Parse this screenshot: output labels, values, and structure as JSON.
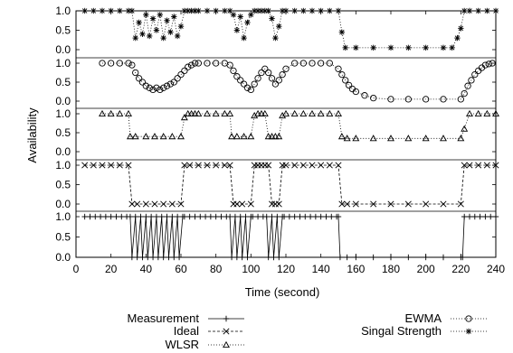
{
  "chart_data": {
    "type": "line",
    "xlabel": "Time (second)",
    "ylabel": "Availability",
    "xlim": [
      0,
      240
    ],
    "x_ticks": [
      0,
      20,
      40,
      60,
      80,
      100,
      120,
      140,
      160,
      180,
      200,
      220,
      240
    ],
    "y_ticks": [
      "0.0",
      "0.5",
      "1.0"
    ],
    "grid": false,
    "legend_position": "bottom",
    "panels": [
      {
        "name": "Singal Strength",
        "marker": "asterisk",
        "line": "dotted",
        "x": [
          5,
          10,
          15,
          20,
          25,
          30,
          32,
          34,
          36,
          38,
          40,
          42,
          44,
          46,
          48,
          50,
          52,
          54,
          56,
          58,
          60,
          62,
          64,
          66,
          68,
          70,
          75,
          80,
          85,
          88,
          90,
          92,
          94,
          96,
          98,
          100,
          102,
          104,
          106,
          108,
          110,
          112,
          114,
          116,
          118,
          120,
          125,
          130,
          135,
          140,
          145,
          150,
          152,
          154,
          160,
          170,
          180,
          190,
          200,
          210,
          215,
          218,
          220,
          222,
          225,
          230,
          235,
          240
        ],
        "y": [
          1.0,
          1.0,
          1.0,
          1.0,
          1.0,
          1.0,
          1.0,
          0.3,
          0.7,
          0.4,
          0.9,
          0.35,
          0.8,
          0.5,
          0.9,
          0.3,
          0.75,
          0.45,
          0.85,
          0.35,
          0.6,
          1.0,
          1.0,
          1.0,
          1.0,
          1.0,
          1.0,
          1.0,
          1.0,
          1.0,
          0.9,
          0.5,
          0.85,
          0.3,
          0.7,
          0.9,
          1.0,
          1.0,
          1.0,
          1.0,
          1.0,
          0.8,
          0.3,
          0.6,
          1.0,
          1.0,
          1.0,
          1.0,
          1.0,
          1.0,
          1.0,
          1.0,
          0.45,
          0.05,
          0.05,
          0.05,
          0.05,
          0.05,
          0.05,
          0.05,
          0.05,
          0.3,
          0.55,
          1.0,
          1.0,
          1.0,
          1.0,
          1.0
        ]
      },
      {
        "name": "EWMA",
        "marker": "circle",
        "line": "dotted",
        "x": [
          15,
          20,
          25,
          30,
          32,
          34,
          36,
          38,
          40,
          42,
          44,
          46,
          48,
          50,
          52,
          54,
          56,
          58,
          60,
          62,
          64,
          66,
          68,
          70,
          75,
          80,
          85,
          88,
          90,
          92,
          94,
          96,
          98,
          100,
          102,
          104,
          106,
          108,
          110,
          112,
          114,
          116,
          118,
          120,
          125,
          130,
          135,
          140,
          145,
          150,
          152,
          154,
          156,
          158,
          160,
          165,
          170,
          180,
          190,
          200,
          210,
          220,
          222,
          224,
          226,
          228,
          230,
          232,
          234,
          236,
          238
        ],
        "y": [
          1.0,
          1.0,
          1.0,
          1.0,
          0.95,
          0.75,
          0.6,
          0.5,
          0.4,
          0.35,
          0.3,
          0.35,
          0.3,
          0.35,
          0.4,
          0.45,
          0.5,
          0.6,
          0.7,
          0.8,
          0.9,
          0.95,
          1.0,
          1.0,
          1.0,
          1.0,
          1.0,
          0.95,
          0.8,
          0.65,
          0.55,
          0.45,
          0.35,
          0.3,
          0.45,
          0.6,
          0.75,
          0.85,
          0.75,
          0.6,
          0.45,
          0.55,
          0.7,
          0.85,
          1.0,
          1.0,
          1.0,
          1.0,
          1.0,
          0.85,
          0.7,
          0.55,
          0.42,
          0.32,
          0.25,
          0.15,
          0.08,
          0.05,
          0.05,
          0.05,
          0.05,
          0.05,
          0.2,
          0.4,
          0.55,
          0.7,
          0.8,
          0.88,
          0.95,
          0.98,
          1.0
        ]
      },
      {
        "name": "WLSR",
        "marker": "triangle",
        "line": "dotted",
        "x": [
          15,
          20,
          25,
          30,
          31,
          34,
          40,
          45,
          50,
          55,
          60,
          62,
          64,
          66,
          68,
          70,
          75,
          80,
          85,
          88,
          89,
          92,
          96,
          100,
          102,
          104,
          106,
          108,
          110,
          112,
          114,
          116,
          118,
          120,
          125,
          130,
          135,
          140,
          145,
          150,
          152,
          155,
          160,
          170,
          180,
          190,
          200,
          210,
          220,
          222,
          225,
          230,
          235,
          240
        ],
        "y": [
          1.0,
          1.0,
          1.0,
          1.0,
          0.4,
          0.4,
          0.4,
          0.4,
          0.4,
          0.4,
          0.4,
          0.9,
          1.0,
          1.0,
          1.0,
          1.0,
          1.0,
          1.0,
          1.0,
          1.0,
          0.4,
          0.4,
          0.4,
          0.4,
          0.95,
          1.0,
          1.0,
          1.0,
          0.4,
          0.4,
          0.4,
          0.4,
          0.95,
          1.0,
          1.0,
          1.0,
          1.0,
          1.0,
          1.0,
          1.0,
          0.4,
          0.35,
          0.35,
          0.35,
          0.35,
          0.35,
          0.35,
          0.35,
          0.35,
          0.6,
          1.0,
          1.0,
          1.0,
          1.0
        ]
      },
      {
        "name": "Ideal",
        "marker": "x",
        "line": "dashed",
        "x": [
          5,
          10,
          15,
          20,
          25,
          30,
          32,
          35,
          40,
          45,
          50,
          55,
          60,
          62,
          65,
          70,
          75,
          80,
          85,
          88,
          90,
          92,
          95,
          100,
          102,
          104,
          106,
          108,
          110,
          112,
          114,
          116,
          118,
          120,
          125,
          130,
          135,
          140,
          145,
          150,
          152,
          155,
          160,
          170,
          180,
          190,
          200,
          210,
          220,
          222,
          225,
          230,
          235,
          240
        ],
        "y": [
          1,
          1,
          1,
          1,
          1,
          1,
          0,
          0,
          0,
          0,
          0,
          0,
          0,
          1,
          1,
          1,
          1,
          1,
          1,
          1,
          0,
          0,
          0,
          0,
          1,
          1,
          1,
          1,
          1,
          0,
          0,
          0,
          1,
          1,
          1,
          1,
          1,
          1,
          1,
          1,
          0,
          0,
          0,
          0,
          0,
          0,
          0,
          0,
          0,
          1,
          1,
          1,
          1,
          1
        ]
      },
      {
        "name": "Measurement",
        "marker": "plus",
        "line": "solid",
        "x": [
          5,
          8,
          11,
          14,
          17,
          20,
          23,
          26,
          29,
          31,
          32,
          34,
          35,
          37,
          38,
          40,
          41,
          43,
          44,
          46,
          47,
          49,
          50,
          52,
          53,
          55,
          56,
          58,
          59,
          61,
          62,
          65,
          68,
          71,
          74,
          77,
          80,
          83,
          86,
          88,
          89,
          91,
          92,
          94,
          95,
          97,
          98,
          100,
          101,
          104,
          107,
          109,
          110,
          112,
          113,
          115,
          116,
          118,
          119,
          122,
          125,
          128,
          131,
          134,
          137,
          140,
          143,
          146,
          149,
          150,
          151,
          155,
          160,
          170,
          180,
          190,
          200,
          210,
          220,
          221,
          222,
          225,
          228,
          231,
          234,
          237,
          240
        ],
        "y": [
          1,
          1,
          1,
          1,
          1,
          1,
          1,
          1,
          1,
          1,
          0,
          1,
          0,
          1,
          0,
          1,
          0,
          1,
          0,
          1,
          0,
          1,
          0,
          1,
          0,
          1,
          0,
          1,
          0,
          1,
          1,
          1,
          1,
          1,
          1,
          1,
          1,
          1,
          1,
          1,
          0,
          1,
          0,
          1,
          0,
          1,
          0,
          1,
          1,
          1,
          1,
          1,
          0,
          1,
          0,
          1,
          0,
          1,
          1,
          1,
          1,
          1,
          1,
          1,
          1,
          1,
          1,
          1,
          1,
          1,
          0,
          0,
          0,
          0,
          0,
          0,
          0,
          0,
          0,
          0,
          1,
          1,
          1,
          1,
          1,
          1,
          1
        ]
      }
    ],
    "legend": [
      {
        "name": "Measurement",
        "marker": "plus",
        "line": "solid"
      },
      {
        "name": "Ideal",
        "marker": "x",
        "line": "dashed"
      },
      {
        "name": "WLSR",
        "marker": "triangle",
        "line": "dotted"
      },
      {
        "name": "EWMA",
        "marker": "circle",
        "line": "dotted"
      },
      {
        "name": "Singal Strength",
        "marker": "asterisk",
        "line": "dotted"
      }
    ]
  }
}
